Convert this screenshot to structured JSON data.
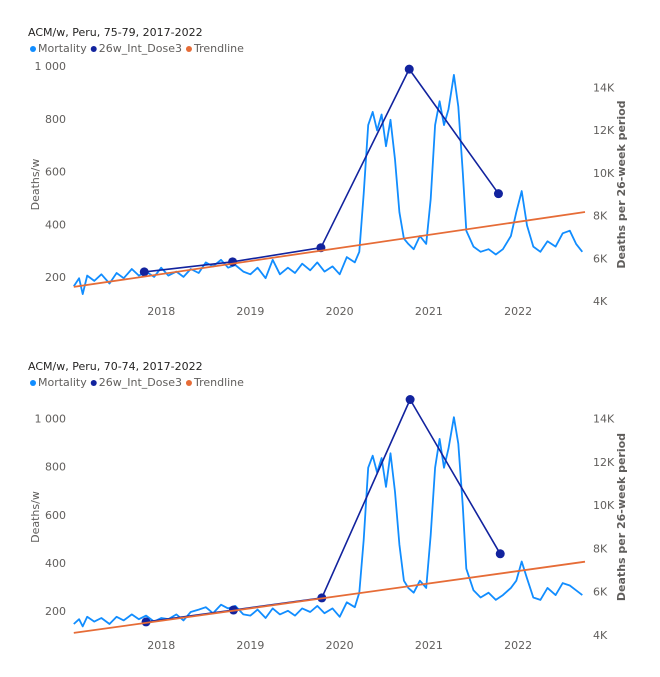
{
  "chart_data": [
    {
      "type": "line",
      "title": "ACM/w, Peru, 75-79, 2017-2022",
      "ylabel": "Deaths/w",
      "y2label": "Deaths per 26-week period",
      "xlim": [
        2017,
        2022.75
      ],
      "xticks": [
        2018,
        2019,
        2020,
        2021,
        2022
      ],
      "ylim": [
        110,
        1000
      ],
      "yticks": [
        200,
        400,
        600,
        800,
        {
          "value": 1000,
          "label": "1 000"
        }
      ],
      "y2lim": [
        4000,
        15000
      ],
      "y2ticks": [
        {
          "value": 4000,
          "label": "4K"
        },
        {
          "value": 6000,
          "label": "6K"
        },
        {
          "value": 8000,
          "label": "8K"
        },
        {
          "value": 10000,
          "label": "10K"
        },
        {
          "value": 12000,
          "label": "12K"
        },
        {
          "value": 14000,
          "label": "14K"
        }
      ],
      "series": [
        {
          "name": "Mortality",
          "color": "#118dff",
          "x": [
            2017.02,
            2017.08,
            2017.12,
            2017.17,
            2017.25,
            2017.33,
            2017.42,
            2017.5,
            2017.58,
            2017.67,
            2017.75,
            2017.83,
            2017.92,
            2018.0,
            2018.08,
            2018.17,
            2018.25,
            2018.33,
            2018.42,
            2018.5,
            2018.58,
            2018.67,
            2018.75,
            2018.83,
            2018.92,
            2019.0,
            2019.08,
            2019.17,
            2019.25,
            2019.33,
            2019.42,
            2019.5,
            2019.58,
            2019.67,
            2019.75,
            2019.83,
            2019.92,
            2020.0,
            2020.08,
            2020.17,
            2020.22,
            2020.27,
            2020.32,
            2020.37,
            2020.42,
            2020.47,
            2020.52,
            2020.57,
            2020.62,
            2020.67,
            2020.72,
            2020.77,
            2020.83,
            2020.9,
            2020.97,
            2021.02,
            2021.07,
            2021.12,
            2021.17,
            2021.22,
            2021.28,
            2021.33,
            2021.38,
            2021.42,
            2021.5,
            2021.58,
            2021.67,
            2021.75,
            2021.83,
            2021.92,
            2021.98,
            2022.04,
            2022.1,
            2022.17,
            2022.25,
            2022.33,
            2022.42,
            2022.5,
            2022.58,
            2022.65,
            2022.72
          ],
          "values": [
            170,
            200,
            140,
            210,
            190,
            215,
            180,
            220,
            200,
            235,
            210,
            225,
            205,
            240,
            210,
            225,
            205,
            235,
            220,
            260,
            245,
            270,
            240,
            250,
            225,
            215,
            240,
            200,
            270,
            215,
            240,
            220,
            255,
            230,
            260,
            225,
            245,
            215,
            280,
            260,
            300,
            520,
            780,
            830,
            760,
            820,
            700,
            800,
            650,
            450,
            350,
            330,
            310,
            360,
            330,
            500,
            780,
            870,
            780,
            840,
            970,
            850,
            600,
            380,
            320,
            300,
            310,
            290,
            310,
            360,
            450,
            530,
            400,
            320,
            300,
            340,
            320,
            370,
            380,
            330,
            300
          ]
        },
        {
          "name": "26w_Int_Dose3",
          "color": "#12239e",
          "axis": "y2",
          "markers": true,
          "x": [
            2017.81,
            2018.8,
            2019.79,
            2020.78,
            2021.78
          ],
          "values": [
            5410,
            5880,
            6540,
            14900,
            9070
          ]
        },
        {
          "name": "Trendline",
          "color": "#e66c37",
          "x": [
            2017.02,
            2022.75
          ],
          "values": [
            167,
            451
          ]
        }
      ]
    },
    {
      "type": "line",
      "title": "ACM/w, Peru, 70-74, 2017-2022",
      "ylabel": "Deaths/w",
      "y2label": "Deaths per 26-week period",
      "xlim": [
        2017,
        2022.75
      ],
      "xticks": [
        2018,
        2019,
        2020,
        2021,
        2022
      ],
      "ylim": [
        100,
        1090
      ],
      "yticks": [
        200,
        400,
        600,
        800,
        {
          "value": 1000,
          "label": "1 000"
        }
      ],
      "y2lim": [
        4000,
        15000
      ],
      "y2ticks": [
        {
          "value": 4000,
          "label": "4K"
        },
        {
          "value": 6000,
          "label": "6K"
        },
        {
          "value": 8000,
          "label": "8K"
        },
        {
          "value": 10000,
          "label": "10K"
        },
        {
          "value": 12000,
          "label": "12K"
        },
        {
          "value": 14000,
          "label": "14K"
        }
      ],
      "series": [
        {
          "name": "Mortality",
          "color": "#118dff",
          "x": [
            2017.02,
            2017.08,
            2017.12,
            2017.17,
            2017.25,
            2017.33,
            2017.42,
            2017.5,
            2017.58,
            2017.67,
            2017.75,
            2017.83,
            2017.92,
            2018.0,
            2018.08,
            2018.17,
            2018.25,
            2018.33,
            2018.42,
            2018.5,
            2018.58,
            2018.67,
            2018.75,
            2018.83,
            2018.92,
            2019.0,
            2019.08,
            2019.17,
            2019.25,
            2019.33,
            2019.42,
            2019.5,
            2019.58,
            2019.67,
            2019.75,
            2019.83,
            2019.92,
            2020.0,
            2020.08,
            2020.17,
            2020.22,
            2020.27,
            2020.32,
            2020.37,
            2020.42,
            2020.47,
            2020.52,
            2020.57,
            2020.62,
            2020.67,
            2020.72,
            2020.77,
            2020.83,
            2020.9,
            2020.97,
            2021.02,
            2021.07,
            2021.12,
            2021.17,
            2021.22,
            2021.28,
            2021.33,
            2021.38,
            2021.42,
            2021.5,
            2021.58,
            2021.67,
            2021.75,
            2021.83,
            2021.92,
            2021.98,
            2022.04,
            2022.1,
            2022.17,
            2022.25,
            2022.33,
            2022.42,
            2022.5,
            2022.58,
            2022.65,
            2022.72
          ],
          "values": [
            150,
            170,
            140,
            180,
            160,
            175,
            150,
            180,
            165,
            190,
            170,
            185,
            160,
            175,
            170,
            190,
            165,
            200,
            210,
            220,
            195,
            230,
            215,
            225,
            190,
            185,
            210,
            175,
            215,
            190,
            205,
            185,
            215,
            200,
            225,
            195,
            215,
            180,
            240,
            220,
            280,
            500,
            800,
            850,
            780,
            840,
            720,
            860,
            700,
            480,
            330,
            300,
            280,
            330,
            300,
            520,
            800,
            920,
            800,
            880,
            1010,
            900,
            640,
            380,
            290,
            260,
            280,
            250,
            270,
            300,
            330,
            410,
            340,
            260,
            250,
            300,
            270,
            320,
            310,
            290,
            270
          ]
        },
        {
          "name": "26w_Int_Dose3",
          "color": "#12239e",
          "axis": "y2",
          "markers": true,
          "x": [
            2017.83,
            2018.81,
            2019.8,
            2020.79,
            2021.8
          ],
          "values": [
            4650,
            5200,
            5760,
            14930,
            7800
          ]
        },
        {
          "name": "Trendline",
          "color": "#e66c37",
          "x": [
            2017.02,
            2022.75
          ],
          "values": [
            113,
            409
          ]
        }
      ]
    }
  ]
}
